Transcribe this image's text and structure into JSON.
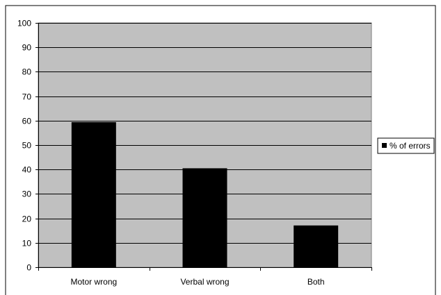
{
  "chart_data": {
    "type": "bar",
    "categories": [
      "Motor wrong",
      "Verbal wrong",
      "Both"
    ],
    "series": [
      {
        "name": "% of errors",
        "values": [
          59.4,
          40.5,
          17.1
        ],
        "color": "#000000"
      }
    ],
    "ylim": [
      0,
      100
    ],
    "yticks": [
      0,
      10,
      20,
      30,
      40,
      50,
      60,
      70,
      80,
      90,
      100
    ],
    "grid": true,
    "plot_background": "#c0c0c0",
    "legend_position": "right"
  }
}
